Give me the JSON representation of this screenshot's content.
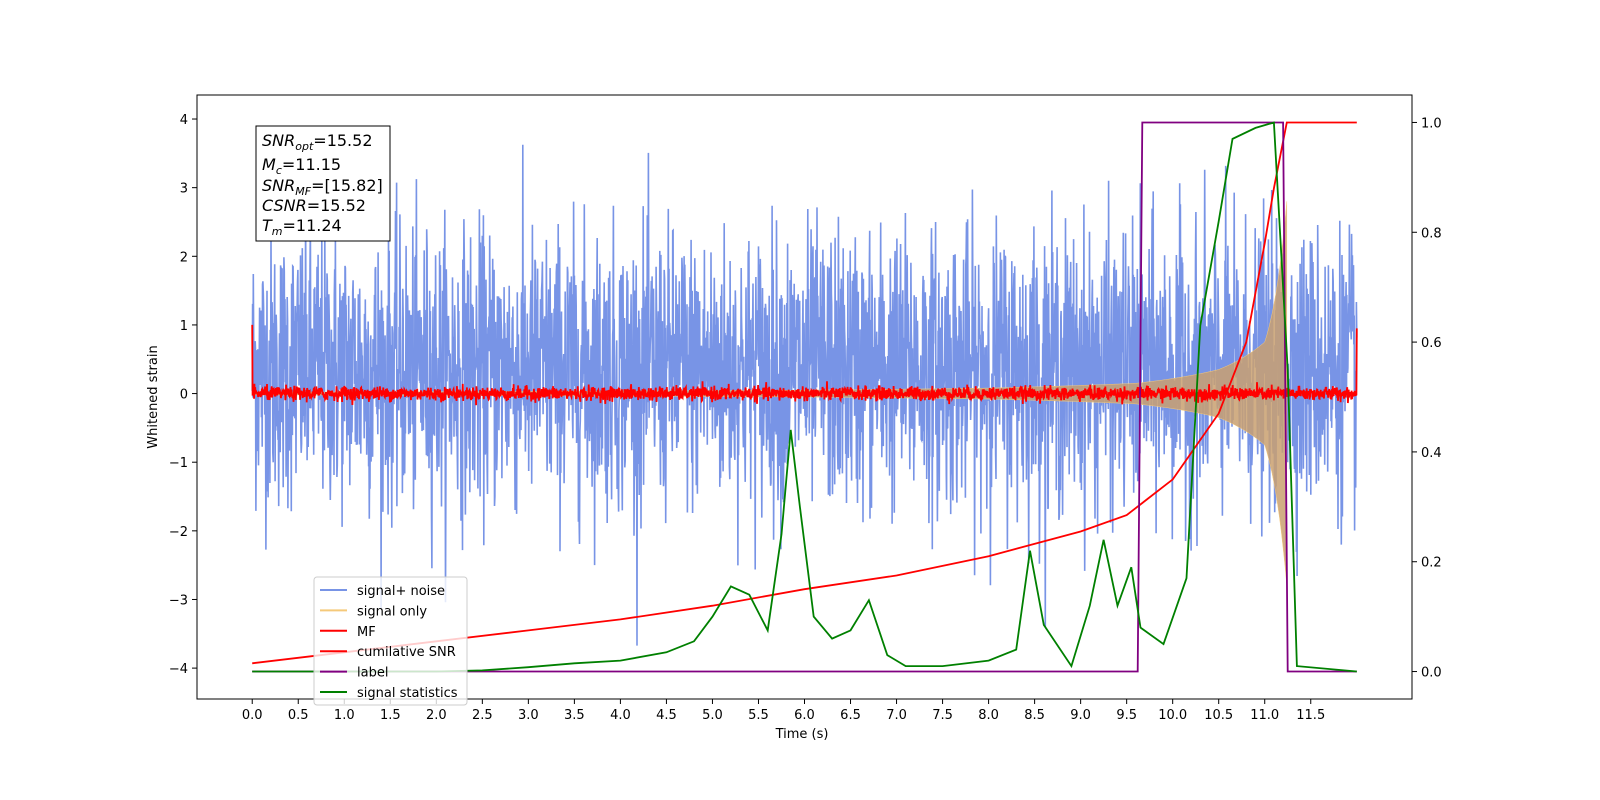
{
  "chart_data": {
    "type": "line",
    "xlabel": "Time (s)",
    "ylabel": "Whitened strain",
    "xlim": [
      -0.6,
      12.6
    ],
    "ylim": [
      -4.45,
      4.35
    ],
    "y2lim": [
      -0.05,
      1.05
    ],
    "xticks": [
      "0.0",
      "0.5",
      "1.0",
      "1.5",
      "2.0",
      "2.5",
      "3.0",
      "3.5",
      "4.0",
      "4.5",
      "5.0",
      "5.5",
      "6.0",
      "6.5",
      "7.0",
      "7.5",
      "8.0",
      "8.5",
      "9.0",
      "9.5",
      "10.0",
      "10.5",
      "11.0",
      "11.5"
    ],
    "yticks": [
      "4",
      "3",
      "2",
      "1",
      "0",
      "−1",
      "−2",
      "−3",
      "−4"
    ],
    "y2ticks": [
      "1.0",
      "0.8",
      "0.6",
      "0.4",
      "0.2",
      "0.0"
    ],
    "grid": false,
    "legend_position": "lower-left",
    "info_box": {
      "line1_sym": "SNR",
      "line1_sub": "opt",
      "line1_val": "=15.52",
      "line2_sym": "M",
      "line2_sub": "c",
      "line2_val": "=11.15",
      "line3_sym": "SNR",
      "line3_sub": "MF",
      "line3_val": "=[15.82]",
      "line4_sym": "CSNR",
      "line4_val": "=15.52",
      "line5_sym": "T",
      "line5_sub": "m",
      "line5_val": "=11.24"
    },
    "series": [
      {
        "name": "signal+ noise",
        "color": "#7894e6",
        "axis": "left",
        "noise_std": 1.0,
        "t_start": 0.0,
        "t_end": 12.0
      },
      {
        "name": "signal only",
        "color": "#f5c97a",
        "axis": "left",
        "envelope_t": [
          0,
          6,
          8,
          9.6,
          10.5,
          11,
          11.24
        ],
        "envelope_amp": [
          0.02,
          0.05,
          0.08,
          0.15,
          0.35,
          0.75,
          2.8
        ]
      },
      {
        "name": "MF",
        "color": "#ff0000",
        "axis": "left",
        "noise_std": 0.05,
        "t_start": 0.0,
        "t_end": 12.0
      },
      {
        "name": "cumilative SNR",
        "color": "#ff0000",
        "axis": "right",
        "x": [
          0.0,
          1.0,
          2.0,
          3.0,
          4.0,
          5.0,
          6.0,
          7.0,
          8.0,
          9.0,
          9.5,
          10.0,
          10.5,
          10.8,
          11.0,
          11.1,
          11.24,
          12.0
        ],
        "y": [
          0.015,
          0.035,
          0.055,
          0.075,
          0.095,
          0.12,
          0.15,
          0.175,
          0.21,
          0.255,
          0.285,
          0.35,
          0.47,
          0.6,
          0.78,
          0.88,
          1.0,
          1.0
        ]
      },
      {
        "name": "label",
        "color": "#800080",
        "axis": "right",
        "x": [
          0.0,
          9.62,
          9.67,
          11.2,
          11.25,
          12.0
        ],
        "y": [
          0.0,
          0.0,
          1.0,
          1.0,
          0.0,
          0.0
        ]
      },
      {
        "name": "signal statistics",
        "color": "#008000",
        "axis": "right",
        "x": [
          0.0,
          0.5,
          1.0,
          1.5,
          2.0,
          2.5,
          3.0,
          3.5,
          4.0,
          4.5,
          4.8,
          5.0,
          5.2,
          5.4,
          5.6,
          5.75,
          5.85,
          5.95,
          6.1,
          6.3,
          6.5,
          6.7,
          6.9,
          7.1,
          7.5,
          8.0,
          8.3,
          8.45,
          8.6,
          8.9,
          9.1,
          9.25,
          9.4,
          9.55,
          9.65,
          9.9,
          10.15,
          10.3,
          10.5,
          10.65,
          10.9,
          11.1,
          11.25,
          11.35,
          12.0
        ],
        "y": [
          0.0,
          0.0,
          0.0,
          0.0,
          0.0,
          0.002,
          0.008,
          0.015,
          0.02,
          0.035,
          0.055,
          0.1,
          0.155,
          0.14,
          0.075,
          0.25,
          0.44,
          0.3,
          0.1,
          0.06,
          0.075,
          0.13,
          0.03,
          0.01,
          0.01,
          0.02,
          0.04,
          0.22,
          0.085,
          0.01,
          0.12,
          0.24,
          0.12,
          0.19,
          0.08,
          0.05,
          0.17,
          0.63,
          0.82,
          0.97,
          0.99,
          1.0,
          0.55,
          0.01,
          0.0
        ]
      }
    ]
  }
}
